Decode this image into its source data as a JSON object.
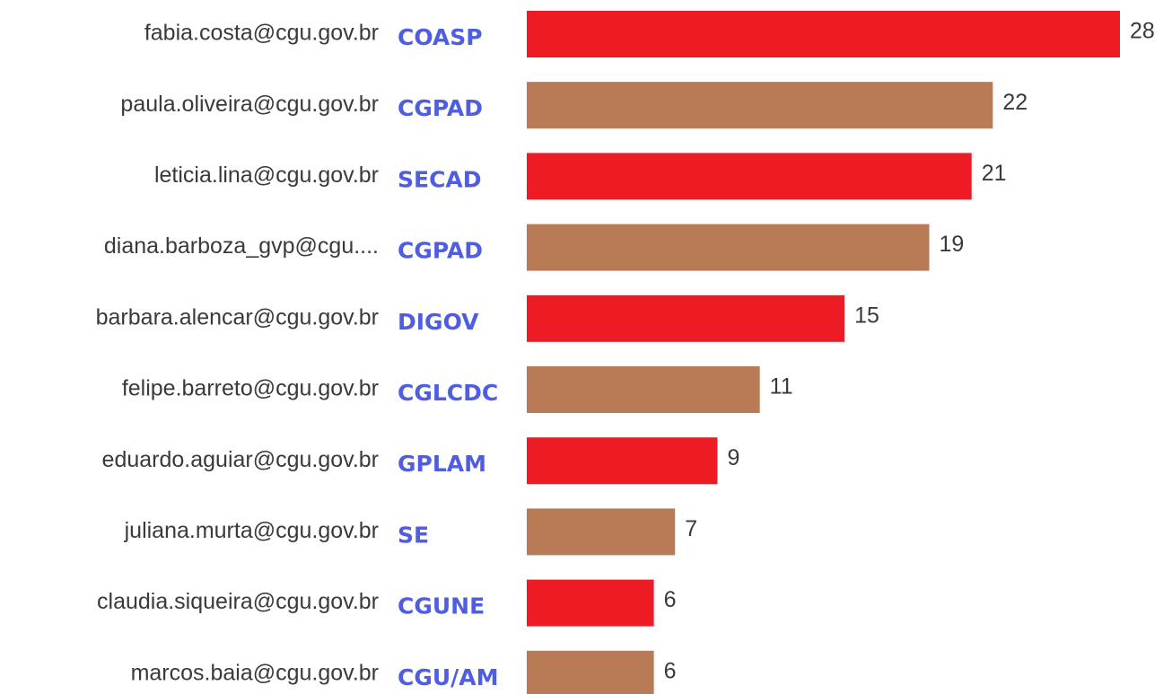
{
  "chart_data": {
    "type": "bar",
    "categories": [
      "fabia.costa@cgu.gov.br",
      "paula.oliveira@cgu.gov.br",
      "leticia.lina@cgu.gov.br",
      "diana.barboza_gvp@cgu....",
      "barbara.alencar@cgu.gov.br",
      "felipe.barreto@cgu.gov.br",
      "eduardo.aguiar@cgu.gov.br",
      "juliana.murta@cgu.gov.br",
      "claudia.siqueira@cgu.gov.br",
      "marcos.baia@cgu.gov.br"
    ],
    "departments": [
      "COASP",
      "CGPAD",
      "SECAD",
      "CGPAD",
      "DIGOV",
      "CGLCDC",
      "GPLAM",
      "SE",
      "CGUNE",
      "CGU/AM"
    ],
    "values": [
      28,
      22,
      21,
      19,
      15,
      11,
      9,
      7,
      6,
      6
    ],
    "colors": [
      "#ed1c24",
      "#b87b56",
      "#ed1c24",
      "#b87b56",
      "#ed1c24",
      "#b87b56",
      "#ed1c24",
      "#b87b56",
      "#ed1c24",
      "#b87b56"
    ]
  }
}
